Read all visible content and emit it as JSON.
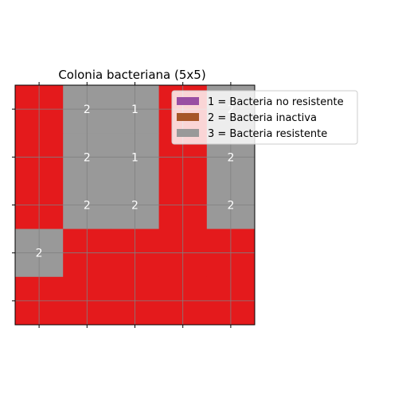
{
  "chart_data": {
    "type": "heatmap",
    "title": "Colonia bacteriana (5x5)",
    "rows": 5,
    "cols": 5,
    "grid": true,
    "legend_position": "top-right",
    "colors": {
      "background_cell": "#e41a1c",
      "1": "#a65628",
      "2": "#999999",
      "3": "#999999",
      "grid": "#808080"
    },
    "cells": [
      [
        null,
        "2",
        "1",
        null,
        "2"
      ],
      [
        null,
        "2",
        "1",
        null,
        "2"
      ],
      [
        null,
        "2",
        "2",
        null,
        "2"
      ],
      [
        "2",
        null,
        null,
        null,
        null
      ],
      [
        null,
        null,
        null,
        null,
        null
      ]
    ],
    "cell_fill": [
      [
        0,
        3,
        2,
        0,
        3
      ],
      [
        0,
        3,
        2,
        0,
        3
      ],
      [
        0,
        3,
        3,
        0,
        3
      ],
      [
        3,
        0,
        0,
        0,
        0
      ],
      [
        0,
        0,
        0,
        0,
        0
      ]
    ],
    "legend": [
      {
        "label": "1 = Bacteria no resistente",
        "color": "#984ea3"
      },
      {
        "label": "2 = Bacteria inactiva",
        "color": "#a65628"
      },
      {
        "label": "3 = Bacteria resistente",
        "color": "#999999"
      }
    ]
  }
}
